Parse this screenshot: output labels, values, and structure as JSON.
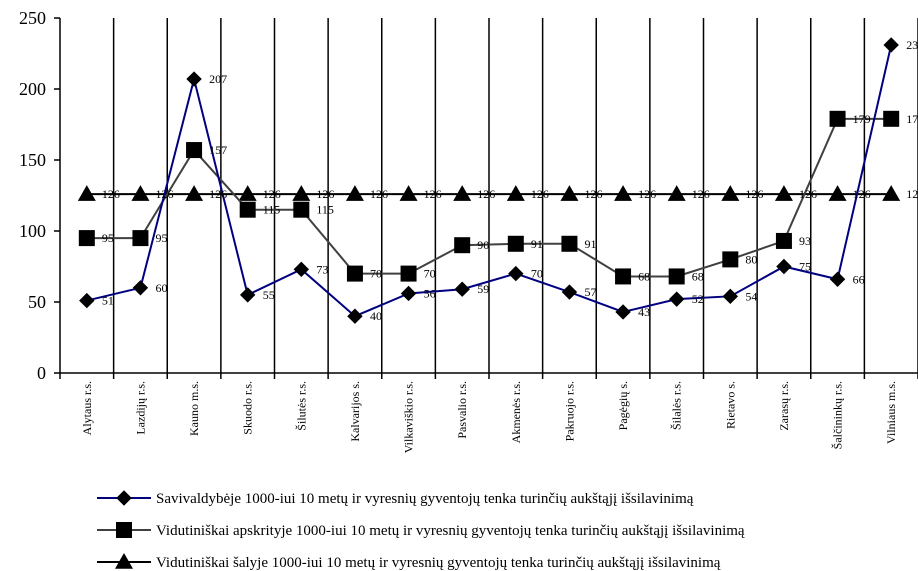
{
  "chart_data": {
    "type": "line",
    "categories": [
      "Alytaus r.s.",
      "Lazdijų r.s.",
      "Kauno m.s.",
      "Skuodo r.s.",
      "Šilutės r.s.",
      "Kalvarijos s.",
      "Vilkaviškio r.s.",
      "Pasvalio r.s.",
      "Akmenės r.s.",
      "Pakruojo r.s.",
      "Pagėgių s.",
      "Šilalės r.s.",
      "Rietavo s.",
      "Zarasų r.s.",
      "Šalčininkų r.s.",
      "Vilniaus m.s."
    ],
    "ylim": [
      0,
      250
    ],
    "yticks": [
      "0",
      "50",
      "100",
      "150",
      "200",
      "250"
    ],
    "grid": "vertical",
    "legend": "bottom",
    "series": [
      {
        "name": "Savivaldybėje 1000-iui 10 metų ir vyresnių gyventojų tenka turinčių aukštąjį išsilavinimą",
        "values": [
          51,
          60,
          207,
          55,
          73,
          40,
          56,
          59,
          70,
          57,
          43,
          52,
          54,
          75,
          66,
          231
        ],
        "color": "#000080",
        "marker": "diamond"
      },
      {
        "name": "Vidutiniškai apskrityje 1000-iui 10 metų ir vyresnių  gyventojų tenka turinčių aukštąjį išsilavinimą",
        "values": [
          95,
          95,
          157,
          115,
          115,
          70,
          70,
          90,
          91,
          91,
          68,
          68,
          80,
          93,
          179,
          179
        ],
        "color": "#404040",
        "marker": "square"
      },
      {
        "name": "Vidutiniškai šalyje 1000-iui 10 metų ir vyresnių  gyventojų tenka turinčių aukštąjį išsilavinimą",
        "values": [
          126,
          126,
          126,
          126,
          126,
          126,
          126,
          126,
          126,
          126,
          126,
          126,
          126,
          126,
          126,
          126
        ],
        "color": "#000000",
        "marker": "triangle"
      }
    ]
  }
}
